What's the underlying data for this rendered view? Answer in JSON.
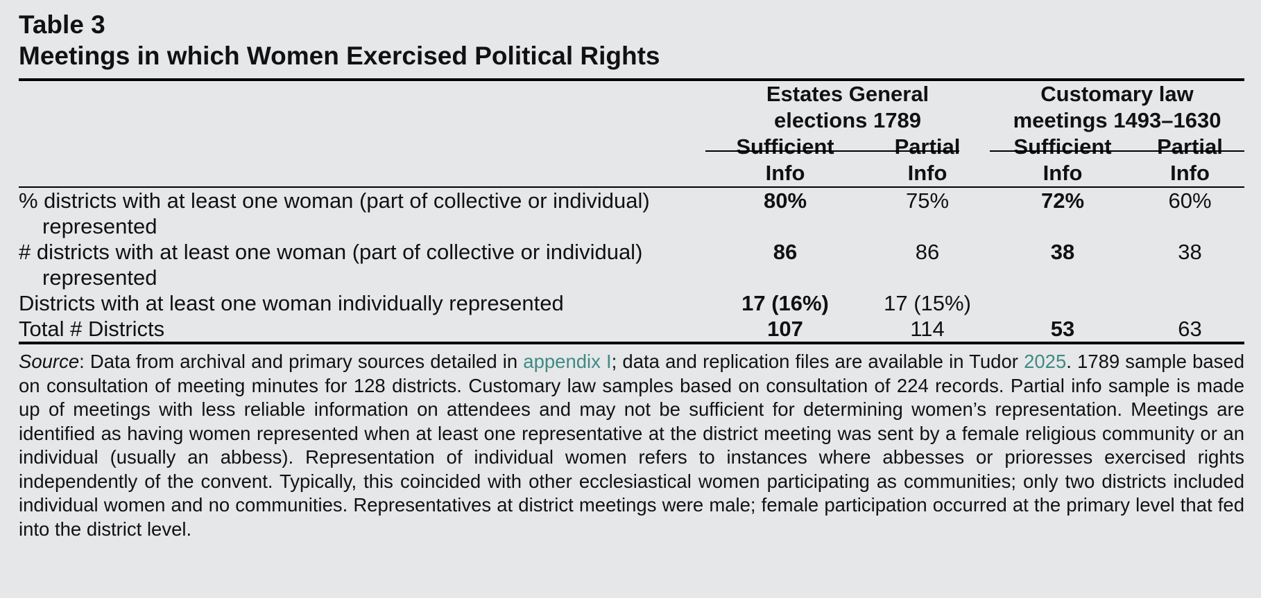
{
  "table": {
    "label": "Table 3",
    "title": "Meetings in which Women Exercised Political Rights",
    "groups": [
      {
        "line1": "Estates General",
        "line2": "elections 1789"
      },
      {
        "line1": "Customary law",
        "line2": "meetings 1493–1630"
      }
    ],
    "subheaders": [
      {
        "line1": "Sufficient",
        "line2": "Info"
      },
      {
        "line1": "Partial",
        "line2": "Info"
      },
      {
        "line1": "Sufficient",
        "line2": "Info"
      },
      {
        "line1": "Partial",
        "line2": "Info"
      }
    ],
    "rows": [
      {
        "label": "% districts with at least one woman (part of collective or individual) represented",
        "values": [
          "80%",
          "75%",
          "72%",
          "60%"
        ]
      },
      {
        "label": "# districts with at least one woman (part of collective or individual) represented",
        "values": [
          "86",
          "86",
          "38",
          "38"
        ]
      },
      {
        "label": "Districts with at least one woman individually represented",
        "values": [
          "17 (16%)",
          "17 (15%)",
          "",
          ""
        ]
      },
      {
        "label": "Total # Districts",
        "values": [
          "107",
          "114",
          "53",
          "63"
        ]
      }
    ]
  },
  "note": {
    "source_label": "Source",
    "part1": ": Data from archival and primary sources detailed in ",
    "link1": "appendix I",
    "part2": "; data and replication files are available in Tudor ",
    "link2": "2025",
    "part3": ". 1789 sample based on consultation of meeting minutes for 128 districts. Customary law samples based on consultation of 224 records. Partial info sample is made up of meetings with less reliable information on attendees and may not be sufficient for determining women’s representation. Meetings are identified as having women represented when at least one representative at the district meeting was sent by a female religious community or an individual (usually an abbess). Representation of individual women refers to instances where abbesses or prioresses exercised rights independently of the convent. Typically, this coincided with other ecclesiastical women participating as communities; only two districts included individual women and no communities. Representatives at district meetings were male; female participation occurred at the primary level that fed into the district level."
  }
}
